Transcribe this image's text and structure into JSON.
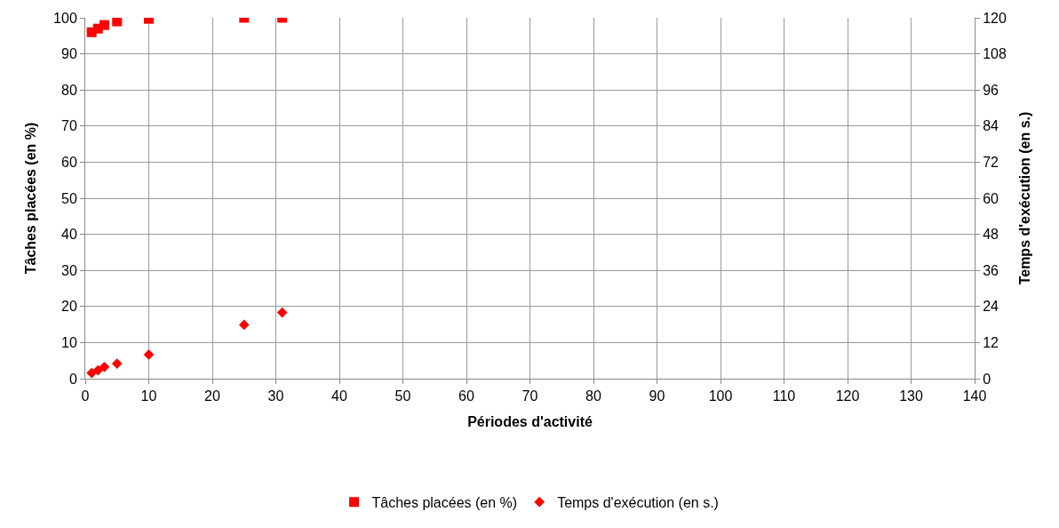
{
  "chart_data": {
    "type": "scatter",
    "xlabel": "Périodes d'activité",
    "ylabel": "Tâches placées (en %)",
    "y2label": "Temps d'exécution (en s.)",
    "x": [
      1,
      2,
      3,
      5,
      10,
      25,
      31
    ],
    "series": [
      {
        "name": "Tâches placées (en %)",
        "color": "#ff0000",
        "marker": "square",
        "values": [
          96,
          97,
          98,
          99,
          99.7,
          100,
          100
        ]
      },
      {
        "name": "Temps d'exécution (en s.)",
        "color": "#ff0000",
        "marker": "diamond",
        "axis": "y2",
        "values": [
          1.9,
          2.8,
          3.9,
          5.0,
          8.0,
          17.9,
          22.0
        ]
      }
    ],
    "xlim": [
      0,
      140
    ],
    "xticks": [
      0,
      10,
      20,
      30,
      40,
      50,
      60,
      70,
      80,
      90,
      100,
      110,
      120,
      130,
      140
    ],
    "ylim": [
      0,
      100
    ],
    "yticks": [
      0,
      10,
      20,
      30,
      40,
      50,
      60,
      70,
      80,
      90,
      100
    ],
    "y2lim": [
      0,
      120
    ],
    "y2ticks": [
      0,
      12,
      24,
      36,
      48,
      60,
      72,
      84,
      96,
      108,
      120
    ],
    "grid": true,
    "legend": "bottom"
  }
}
